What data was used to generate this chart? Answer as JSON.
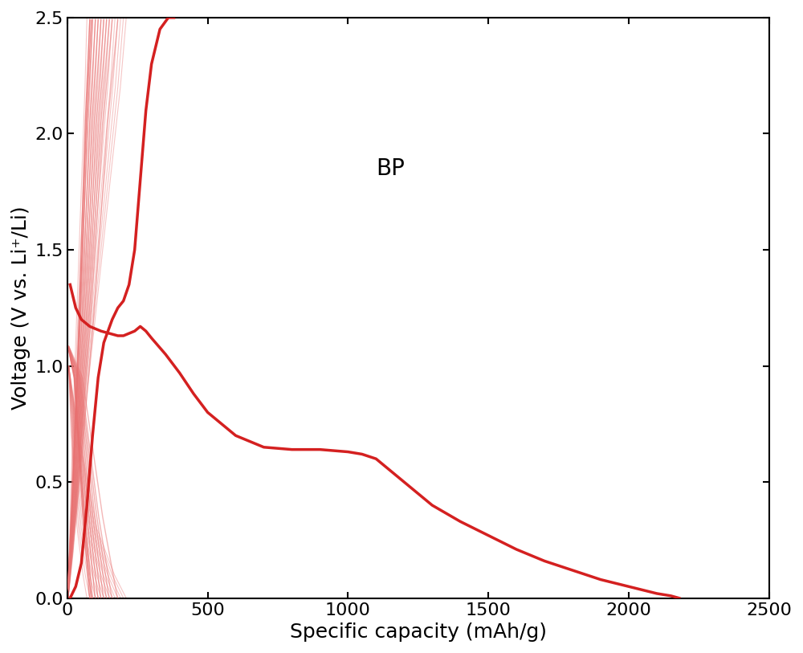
{
  "title": "BP",
  "xlabel": "Specific capacity (mAh/g)",
  "ylabel": "Voltage (V vs. Li⁺/Li)",
  "xlim": [
    0,
    2500
  ],
  "ylim": [
    0.0,
    2.5
  ],
  "xticks": [
    0,
    500,
    1000,
    1500,
    2000,
    2500
  ],
  "yticks": [
    0.0,
    0.5,
    1.0,
    1.5,
    2.0,
    2.5
  ],
  "line_color_main": "#d42020",
  "line_color_thin": "#e87070",
  "background_color": "#ffffff",
  "label_fontsize": 18,
  "tick_fontsize": 16,
  "annotation_fontsize": 20
}
